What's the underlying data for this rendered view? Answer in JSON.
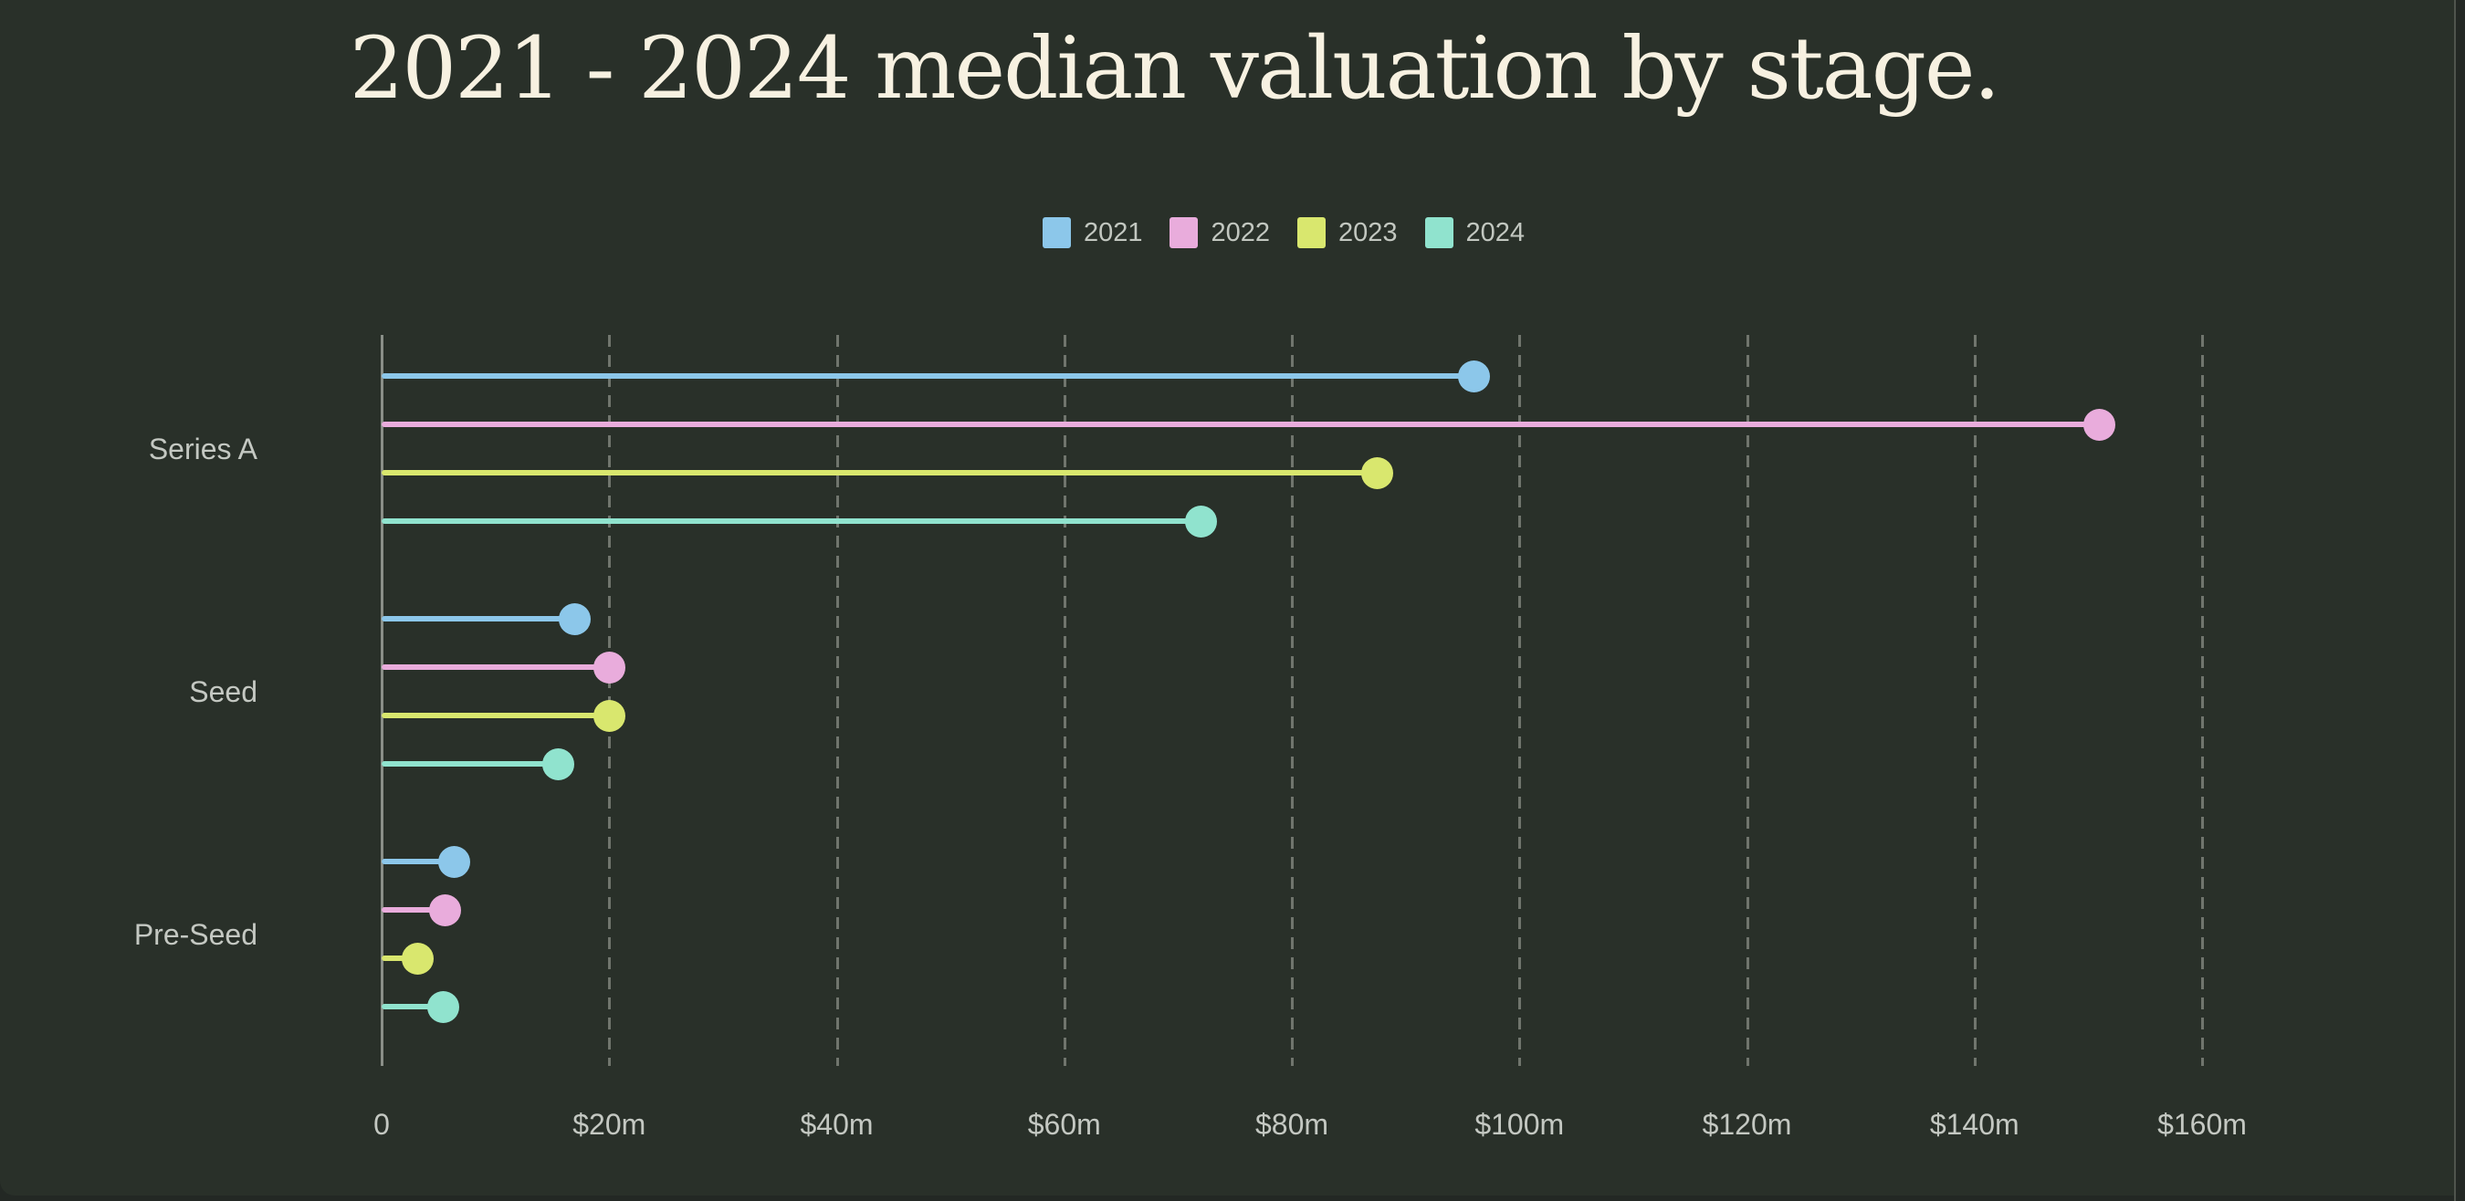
{
  "title": "2021 - 2024 median valuation by stage.",
  "colors": {
    "background": "#293029",
    "page_edge": "#232824",
    "title_text": "#F7F1E1",
    "label_text": "#C4C8C2",
    "axis_line": "#8A8F88",
    "gridline": "#70756D"
  },
  "legend": {
    "position": "top-center",
    "items": [
      "2021",
      "2022",
      "2023",
      "2024"
    ]
  },
  "chart_data": {
    "type": "bar",
    "variant": "horizontal-grouped-lollipop",
    "title": "2021 - 2024 median valuation by stage.",
    "categories": [
      "Series A",
      "Seed",
      "Pre-Seed"
    ],
    "series": [
      {
        "name": "2021",
        "color": "#8CC7EA",
        "values": [
          96,
          17,
          6.4
        ]
      },
      {
        "name": "2022",
        "color": "#E9ACDC",
        "values": [
          151,
          20,
          5.6
        ]
      },
      {
        "name": "2023",
        "color": "#D9E76E",
        "values": [
          87.5,
          20,
          3.2
        ]
      },
      {
        "name": "2024",
        "color": "#90E3CE",
        "values": [
          72,
          15.5,
          5.4
        ]
      }
    ],
    "value_unit": "$m",
    "xlabel": "",
    "ylabel": "",
    "xlim": [
      0,
      160
    ],
    "x_tick_step": 20,
    "x_ticks": [
      "0",
      "$20m",
      "$40m",
      "$60m",
      "$80m",
      "$100m",
      "$120m",
      "$140m",
      "$160m"
    ],
    "grid": "vertical-dashed",
    "legend_position": "top-center"
  }
}
